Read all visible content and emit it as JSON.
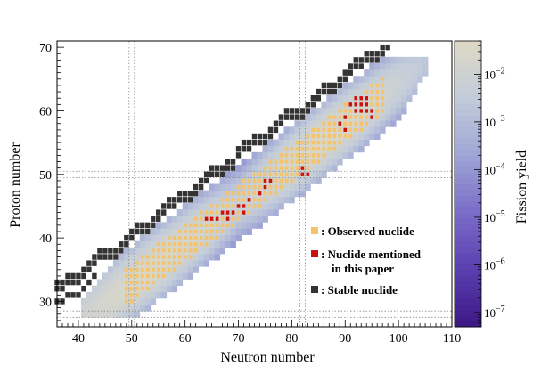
{
  "chart_data": {
    "type": "heatmap",
    "xlabel": "Neutron number",
    "ylabel": "Proton number",
    "colorbar_label": "Fission yield",
    "xlim": [
      36,
      110
    ],
    "ylim": [
      26,
      71
    ],
    "xticks": [
      40,
      50,
      60,
      70,
      80,
      90,
      100,
      110
    ],
    "yticks": [
      30,
      40,
      50,
      60,
      70
    ],
    "colorbar_scale": "log",
    "colorbar_range": [
      5e-08,
      0.05
    ],
    "colorbar_ticks": [
      {
        "base": "10",
        "exp": "−7",
        "value": 1e-07
      },
      {
        "base": "10",
        "exp": "−6",
        "value": 1e-06
      },
      {
        "base": "10",
        "exp": "−5",
        "value": 1e-05
      },
      {
        "base": "10",
        "exp": "−4",
        "value": 0.0001
      },
      {
        "base": "10",
        "exp": "−3",
        "value": 0.001
      },
      {
        "base": "10",
        "exp": "−2",
        "value": 0.01
      }
    ],
    "reference_lines": {
      "N": [
        50,
        82
      ],
      "Z": [
        28,
        50
      ]
    },
    "legend": [
      {
        "label": "Observed nuclide",
        "color": "#f5c46a"
      },
      {
        "label": "Nuclide mentioned",
        "label2": "in this paper",
        "color": "#cc1111"
      },
      {
        "label": "Stable nuclide",
        "color": "#333333"
      }
    ],
    "legend_position": "bottom-right",
    "grid": false,
    "colormap": [
      "#3b1782",
      "#5a3fb0",
      "#7a6cc8",
      "#9ea5d6",
      "#c2ccda",
      "#ddd9c4"
    ],
    "yield_band": {
      "center": "Z = 0.628 N + 1.5",
      "half_width_Z": 6,
      "peaks": [
        [
          53,
          40
        ],
        [
          86,
          56
        ]
      ],
      "peak_yield": 0.03,
      "edge_yield": 5e-08
    },
    "red_nuclides": [
      [
        92,
        60
      ],
      [
        93,
        60
      ],
      [
        94,
        60
      ],
      [
        95,
        60
      ],
      [
        91,
        61
      ],
      [
        92,
        61
      ],
      [
        93,
        61
      ],
      [
        94,
        61
      ],
      [
        92,
        62
      ],
      [
        93,
        62
      ],
      [
        94,
        62
      ],
      [
        95,
        59
      ],
      [
        90,
        59
      ],
      [
        89,
        58
      ],
      [
        90,
        57
      ],
      [
        70,
        45
      ],
      [
        71,
        45
      ],
      [
        72,
        46
      ],
      [
        71,
        44
      ],
      [
        68,
        44
      ],
      [
        69,
        44
      ],
      [
        68,
        43
      ],
      [
        64,
        43
      ],
      [
        65,
        43
      ],
      [
        66,
        43
      ],
      [
        67,
        44
      ],
      [
        75,
        49
      ],
      [
        76,
        49
      ],
      [
        82,
        50
      ],
      [
        83,
        50
      ],
      [
        82,
        51
      ],
      [
        75,
        48
      ],
      [
        74,
        47
      ]
    ]
  }
}
